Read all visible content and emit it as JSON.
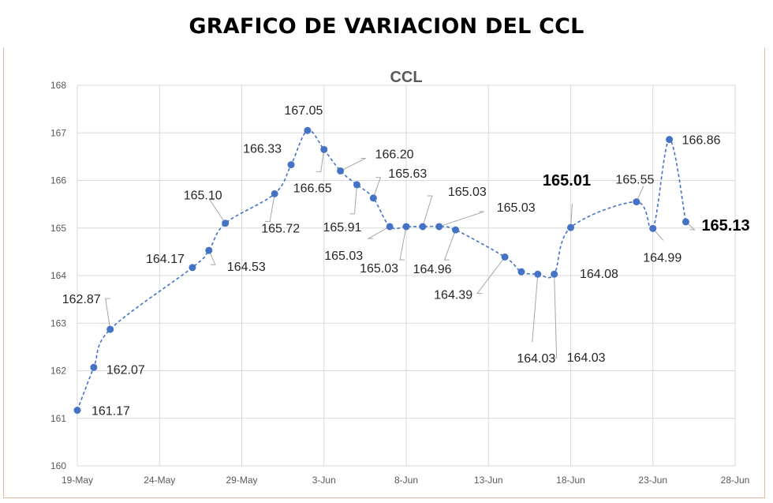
{
  "page": {
    "title": "GRAFICO DE VARIACION DEL CCL"
  },
  "chart_data": {
    "type": "line",
    "title": "CCL",
    "xlabel": "",
    "ylabel": "",
    "ylim": [
      160,
      168
    ],
    "yticks": [
      160,
      161,
      162,
      163,
      164,
      165,
      166,
      167,
      168
    ],
    "xticks": [
      "19-May",
      "24-May",
      "29-May",
      "3-Jun",
      "8-Jun",
      "13-Jun",
      "18-Jun",
      "23-Jun",
      "28-Jun"
    ],
    "xrange_days": [
      0,
      40
    ],
    "grid": true,
    "line_color": "#4472c4",
    "line_style": "dashed",
    "series": [
      {
        "points": [
          {
            "date": "19-May",
            "day": 0,
            "value": 161.17,
            "label": "161.17"
          },
          {
            "date": "20-May",
            "day": 1,
            "value": 162.07,
            "label": "162.07"
          },
          {
            "date": "21-May",
            "day": 2,
            "value": 162.87,
            "label": "162.87"
          },
          {
            "date": "26-May",
            "day": 7,
            "value": 164.17,
            "label": "164.17"
          },
          {
            "date": "27-May",
            "day": 8,
            "value": 164.53,
            "label": "164.53"
          },
          {
            "date": "28-May",
            "day": 9,
            "value": 165.1,
            "label": "165.10"
          },
          {
            "date": "31-May",
            "day": 12,
            "value": 165.72,
            "label": "165.72"
          },
          {
            "date": "1-Jun",
            "day": 13,
            "value": 166.33,
            "label": "166.33"
          },
          {
            "date": "2-Jun",
            "day": 14,
            "value": 167.05,
            "label": "167.05"
          },
          {
            "date": "3-Jun",
            "day": 15,
            "value": 166.65,
            "label": "166.65"
          },
          {
            "date": "4-Jun",
            "day": 16,
            "value": 166.2,
            "label": "166.20"
          },
          {
            "date": "5-Jun",
            "day": 17,
            "value": 165.91,
            "label": "165.91"
          },
          {
            "date": "6-Jun",
            "day": 18,
            "value": 165.63,
            "label": "165.63"
          },
          {
            "date": "7-Jun",
            "day": 19,
            "value": 165.03,
            "label": "165.03"
          },
          {
            "date": "8-Jun",
            "day": 20,
            "value": 165.03,
            "label": "165.03"
          },
          {
            "date": "9-Jun",
            "day": 21,
            "value": 165.03,
            "label": "165.03"
          },
          {
            "date": "10-Jun",
            "day": 22,
            "value": 165.03,
            "label": "165.03"
          },
          {
            "date": "11-Jun",
            "day": 23,
            "value": 164.96,
            "label": "164.96"
          },
          {
            "date": "14-Jun",
            "day": 26,
            "value": 164.39,
            "label": "164.39"
          },
          {
            "date": "15-Jun",
            "day": 27,
            "value": 164.08,
            "label": "164.08"
          },
          {
            "date": "16-Jun",
            "day": 28,
            "value": 164.03,
            "label": "164.03"
          },
          {
            "date": "17-Jun",
            "day": 29,
            "value": 164.03,
            "label": "164.03"
          },
          {
            "date": "18-Jun",
            "day": 30,
            "value": 165.01,
            "label": "165.01"
          },
          {
            "date": "22-Jun",
            "day": 34,
            "value": 165.55,
            "label": "165.55"
          },
          {
            "date": "23-Jun",
            "day": 35,
            "value": 164.99,
            "label": "164.99"
          },
          {
            "date": "24-Jun",
            "day": 36,
            "value": 166.86,
            "label": "166.86"
          },
          {
            "date": "25-Jun",
            "day": 37,
            "value": 165.13,
            "label": "165.13"
          }
        ]
      }
    ]
  }
}
